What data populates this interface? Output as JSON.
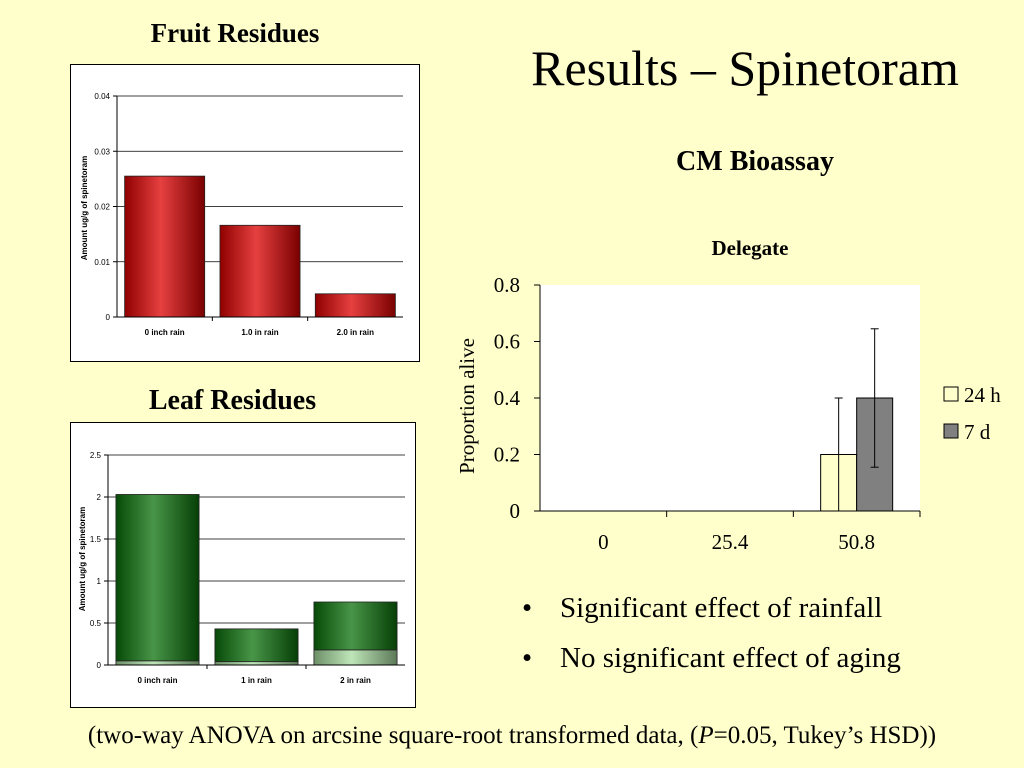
{
  "slide": {
    "title": "Results – Spinetoram",
    "bullets": [
      "Significant effect of rainfall",
      "No significant effect of aging"
    ],
    "footnote_pre": "(two-way ANOVA on arcsine square-root transformed data, (",
    "footnote_p": "P",
    "footnote_post": "=0.05, Tukey’s HSD))"
  },
  "fruit_panel": {
    "title": "Fruit Residues"
  },
  "leaf_panel": {
    "title": "Leaf Residues"
  },
  "bioassay_panel": {
    "title": "CM Bioassay"
  },
  "colors": {
    "fruit_bar": "#dd0000",
    "leaf_bar": "#0b720b",
    "leaf_base": "#a8dca0",
    "bar_24h": "#ffffcc",
    "bar_7d": "#808080",
    "background": "#ffffcc"
  },
  "chart_data": [
    {
      "type": "bar",
      "title": "",
      "ylabel": "Amount ug/g of spinetoram",
      "categories": [
        "0 inch rain",
        "1.0 in rain",
        "2.0 in rain"
      ],
      "values": [
        0.0255,
        0.0166,
        0.0042
      ],
      "ylim": [
        0,
        0.04
      ],
      "yticks": [
        "0",
        "0.01",
        "0.02",
        "0.03",
        "0.04"
      ],
      "grid": true
    },
    {
      "type": "bar",
      "title": "",
      "ylabel": "Amount ug/g of spinetoram",
      "categories": [
        "0 inch rain",
        "1 in rain",
        "2 in rain"
      ],
      "series": [
        {
          "values": [
            0.05,
            0.04,
            0.18
          ]
        },
        {
          "values": [
            1.98,
            0.39,
            0.57
          ]
        }
      ],
      "stacked": true,
      "ylim": [
        0,
        2.5
      ],
      "yticks": [
        "0",
        "0.5",
        "1",
        "1.5",
        "2",
        "2.5"
      ],
      "grid": true
    },
    {
      "type": "bar",
      "title": "Delegate",
      "ylabel": "Proportion alive",
      "categories": [
        "0",
        "25.4",
        "50.8"
      ],
      "series": [
        {
          "name": "24 h",
          "values": [
            0,
            0,
            0.2
          ],
          "err": [
            0,
            0,
            0.2
          ]
        },
        {
          "name": "7 d",
          "values": [
            0,
            0,
            0.4
          ],
          "err": [
            0,
            0,
            0.245
          ]
        }
      ],
      "ylim": [
        0,
        0.8
      ],
      "yticks": [
        "0",
        "0.2",
        "0.4",
        "0.6",
        "0.8"
      ],
      "legend": "right",
      "grid": false
    }
  ]
}
